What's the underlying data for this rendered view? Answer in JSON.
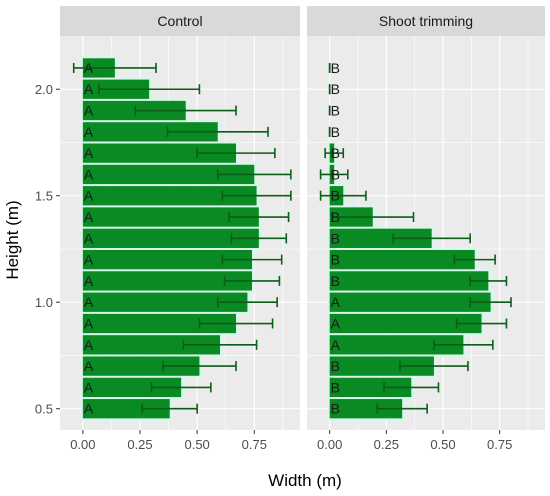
{
  "chart_data": {
    "type": "bar",
    "orientation": "horizontal",
    "xlabel": "Width (m)",
    "ylabel": "Height (m)",
    "xlim": [
      -0.1,
      0.95
    ],
    "ylim": [
      0.4,
      2.25
    ],
    "x_ticks": [
      0,
      0.25,
      0.5,
      0.75
    ],
    "x_tick_labels": [
      "0.00",
      "0.25",
      "0.50",
      "0.75"
    ],
    "y_ticks": [
      0.5,
      1.0,
      1.5,
      2.0
    ],
    "y_tick_labels": [
      "0.5",
      "1.0",
      "1.5",
      "2.0"
    ],
    "bar_height": 0.1,
    "grid": true,
    "colors": {
      "bar": "#0a8a22",
      "bar_halo": "#d8f7ea",
      "error_bar": "#0b5d17",
      "panel_bg": "#ebebeb",
      "strip_bg": "#d9d9d9",
      "grid": "#ffffff"
    },
    "panels": [
      {
        "title": "Control",
        "bars": [
          {
            "y": 0.5,
            "value": 0.38,
            "error": 0.12,
            "letter": "A"
          },
          {
            "y": 0.6,
            "value": 0.43,
            "error": 0.13,
            "letter": "A"
          },
          {
            "y": 0.7,
            "value": 0.51,
            "error": 0.16,
            "letter": "A"
          },
          {
            "y": 0.8,
            "value": 0.6,
            "error": 0.16,
            "letter": "A"
          },
          {
            "y": 0.9,
            "value": 0.67,
            "error": 0.16,
            "letter": "A"
          },
          {
            "y": 1.0,
            "value": 0.72,
            "error": 0.13,
            "letter": "A"
          },
          {
            "y": 1.1,
            "value": 0.74,
            "error": 0.12,
            "letter": "A"
          },
          {
            "y": 1.2,
            "value": 0.74,
            "error": 0.13,
            "letter": "A"
          },
          {
            "y": 1.3,
            "value": 0.77,
            "error": 0.12,
            "letter": "A"
          },
          {
            "y": 1.4,
            "value": 0.77,
            "error": 0.13,
            "letter": "A"
          },
          {
            "y": 1.5,
            "value": 0.76,
            "error": 0.15,
            "letter": "A"
          },
          {
            "y": 1.6,
            "value": 0.75,
            "error": 0.16,
            "letter": "A"
          },
          {
            "y": 1.7,
            "value": 0.67,
            "error": 0.17,
            "letter": "A"
          },
          {
            "y": 1.8,
            "value": 0.59,
            "error": 0.22,
            "letter": "A"
          },
          {
            "y": 1.9,
            "value": 0.45,
            "error": 0.22,
            "letter": "A"
          },
          {
            "y": 2.0,
            "value": 0.29,
            "error": 0.22,
            "letter": "A"
          },
          {
            "y": 2.1,
            "value": 0.14,
            "error": 0.18,
            "letter": "A"
          }
        ]
      },
      {
        "title": "Shoot trimming",
        "bars": [
          {
            "y": 0.5,
            "value": 0.32,
            "error": 0.11,
            "letter": "B"
          },
          {
            "y": 0.6,
            "value": 0.36,
            "error": 0.12,
            "letter": "B"
          },
          {
            "y": 0.7,
            "value": 0.46,
            "error": 0.15,
            "letter": "B"
          },
          {
            "y": 0.8,
            "value": 0.59,
            "error": 0.13,
            "letter": "A"
          },
          {
            "y": 0.9,
            "value": 0.67,
            "error": 0.11,
            "letter": "A"
          },
          {
            "y": 1.0,
            "value": 0.71,
            "error": 0.09,
            "letter": "A"
          },
          {
            "y": 1.1,
            "value": 0.7,
            "error": 0.08,
            "letter": "B"
          },
          {
            "y": 1.2,
            "value": 0.64,
            "error": 0.09,
            "letter": "B"
          },
          {
            "y": 1.3,
            "value": 0.45,
            "error": 0.17,
            "letter": "B"
          },
          {
            "y": 1.4,
            "value": 0.19,
            "error": 0.18,
            "letter": "B"
          },
          {
            "y": 1.5,
            "value": 0.06,
            "error": 0.1,
            "letter": "B"
          },
          {
            "y": 1.6,
            "value": 0.02,
            "error": 0.06,
            "letter": "B"
          },
          {
            "y": 1.7,
            "value": 0.02,
            "error": 0.04,
            "letter": "B"
          },
          {
            "y": 1.8,
            "value": 0.0,
            "error": 0.0,
            "letter": "B"
          },
          {
            "y": 1.9,
            "value": 0.0,
            "error": 0.0,
            "letter": "B"
          },
          {
            "y": 2.0,
            "value": 0.0,
            "error": 0.0,
            "letter": "B"
          },
          {
            "y": 2.1,
            "value": 0.0,
            "error": 0.0,
            "letter": "B"
          }
        ]
      }
    ]
  }
}
